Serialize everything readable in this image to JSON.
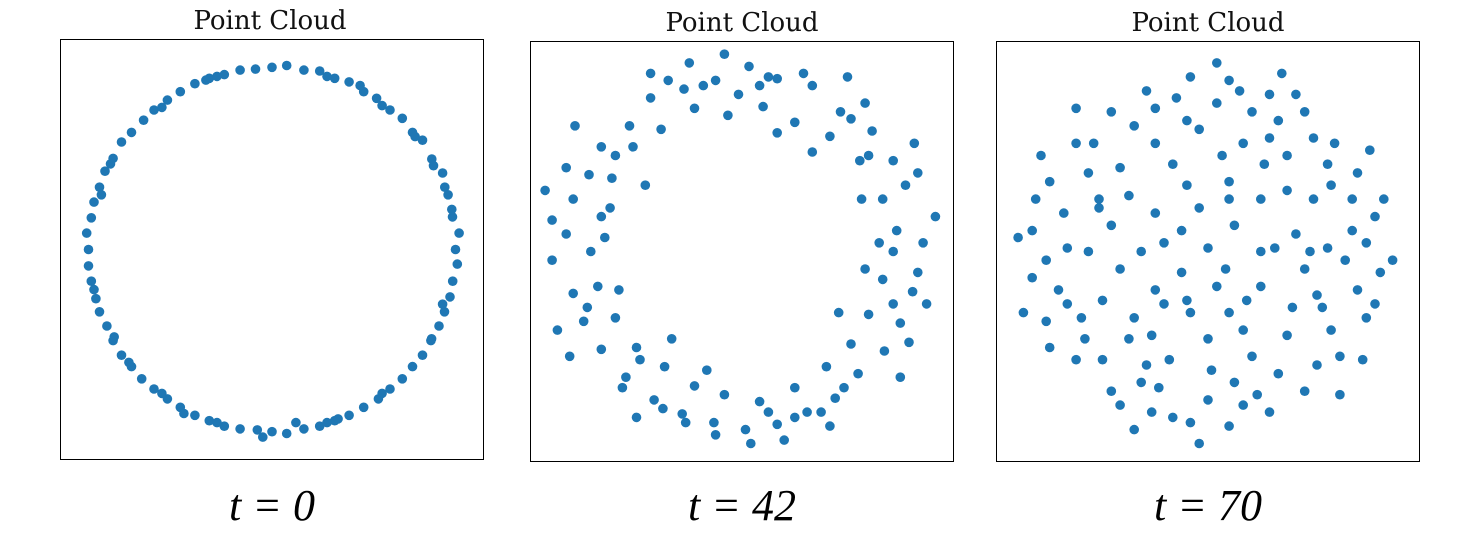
{
  "colors": {
    "point": "#1f77b4",
    "frame": "#000000"
  },
  "chart_data": [
    {
      "type": "scatter",
      "title": "Point Cloud",
      "caption": "t = 0",
      "grid": false,
      "xlim": [
        -1.15,
        1.15
      ],
      "ylim": [
        -1.15,
        1.15
      ],
      "points": [
        [
          1.0,
          0.0
        ],
        [
          0.984,
          0.179
        ],
        [
          0.942,
          0.342
        ],
        [
          0.871,
          0.497
        ],
        [
          0.766,
          0.643
        ],
        [
          0.643,
          0.766
        ],
        [
          0.5,
          0.866
        ],
        [
          0.342,
          0.94
        ],
        [
          0.174,
          0.985
        ],
        [
          0.0,
          1.0
        ],
        [
          -0.174,
          0.985
        ],
        [
          -0.342,
          0.94
        ],
        [
          -0.5,
          0.866
        ],
        [
          -0.643,
          0.766
        ],
        [
          -0.766,
          0.643
        ],
        [
          -0.866,
          0.5
        ],
        [
          -0.94,
          0.342
        ],
        [
          -0.985,
          0.174
        ],
        [
          -1.0,
          0.0
        ],
        [
          -0.985,
          -0.174
        ],
        [
          -0.94,
          -0.342
        ],
        [
          -0.866,
          -0.5
        ],
        [
          -0.766,
          -0.643
        ],
        [
          -0.643,
          -0.766
        ],
        [
          -0.5,
          -0.866
        ],
        [
          -0.342,
          -0.94
        ],
        [
          -0.174,
          -0.985
        ],
        [
          0.0,
          -1.0
        ],
        [
          0.174,
          -0.985
        ],
        [
          0.342,
          -0.94
        ],
        [
          0.5,
          -0.866
        ],
        [
          0.643,
          -0.766
        ],
        [
          0.766,
          -0.643
        ],
        [
          0.866,
          -0.5
        ],
        [
          0.94,
          -0.342
        ],
        [
          0.985,
          -0.174
        ],
        [
          1.02,
          0.09
        ],
        [
          0.93,
          0.42
        ],
        [
          0.82,
          0.6
        ],
        [
          0.71,
          0.72
        ],
        [
          0.57,
          0.83
        ],
        [
          0.42,
          0.92
        ],
        [
          0.26,
          0.98
        ],
        [
          0.08,
          1.01
        ],
        [
          -0.09,
          0.99
        ],
        [
          -0.26,
          0.96
        ],
        [
          -0.42,
          0.91
        ],
        [
          -0.57,
          0.82
        ],
        [
          -0.7,
          0.71
        ],
        [
          -0.82,
          0.59
        ],
        [
          -0.91,
          0.43
        ],
        [
          -0.97,
          0.26
        ],
        [
          -1.01,
          0.09
        ],
        [
          -1.0,
          -0.09
        ],
        [
          -0.96,
          -0.27
        ],
        [
          -0.9,
          -0.42
        ],
        [
          -0.82,
          -0.58
        ],
        [
          -0.71,
          -0.71
        ],
        [
          -0.57,
          -0.82
        ],
        [
          -0.42,
          -0.91
        ],
        [
          -0.26,
          -0.97
        ],
        [
          -0.08,
          -0.99
        ],
        [
          0.08,
          -1.01
        ],
        [
          0.26,
          -0.97
        ],
        [
          0.42,
          -0.91
        ],
        [
          0.58,
          -0.82
        ],
        [
          0.71,
          -0.71
        ],
        [
          0.82,
          -0.58
        ],
        [
          0.91,
          -0.42
        ],
        [
          0.97,
          -0.26
        ],
        [
          1.01,
          -0.08
        ],
        [
          0.96,
          0.3
        ],
        [
          0.88,
          0.46
        ],
        [
          0.6,
          0.79
        ],
        [
          0.3,
          0.95
        ],
        [
          -0.3,
          0.95
        ],
        [
          -0.6,
          0.78
        ],
        [
          -0.88,
          0.47
        ],
        [
          -0.97,
          -0.22
        ],
        [
          -0.86,
          -0.48
        ],
        [
          -0.6,
          -0.79
        ],
        [
          -0.3,
          -0.95
        ],
        [
          0.3,
          -0.95
        ],
        [
          0.6,
          -0.79
        ],
        [
          0.87,
          -0.49
        ],
        [
          0.98,
          0.22
        ],
        [
          -0.05,
          -1.03
        ],
        [
          0.13,
          -0.95
        ],
        [
          -0.93,
          0.3
        ],
        [
          0.93,
          -0.3
        ],
        [
          0.48,
          0.9
        ],
        [
          -0.48,
          -0.9
        ],
        [
          0.78,
          0.62
        ],
        [
          -0.78,
          -0.62
        ],
        [
          0.36,
          -0.93
        ],
        [
          -0.36,
          0.93
        ]
      ]
    },
    {
      "type": "scatter",
      "title": "Point Cloud",
      "caption": "t = 42",
      "grid": false,
      "xlim": [
        -1.2,
        1.2
      ],
      "ylim": [
        -1.2,
        1.2
      ],
      "points": [
        [
          1.03,
          0.05
        ],
        [
          0.93,
          0.38
        ],
        [
          0.86,
          0.52
        ],
        [
          0.74,
          0.69
        ],
        [
          0.56,
          0.8
        ],
        [
          0.4,
          0.95
        ],
        [
          0.2,
          0.99
        ],
        [
          0.04,
          1.06
        ],
        [
          -0.15,
          0.98
        ],
        [
          -0.33,
          0.93
        ],
        [
          -0.52,
          0.88
        ],
        [
          -0.64,
          0.72
        ],
        [
          -0.8,
          0.6
        ],
        [
          -0.87,
          0.44
        ],
        [
          -0.96,
          0.3
        ],
        [
          -1.0,
          0.1
        ],
        [
          -1.08,
          -0.05
        ],
        [
          -0.96,
          -0.24
        ],
        [
          -0.9,
          -0.4
        ],
        [
          -0.8,
          -0.56
        ],
        [
          -0.66,
          -0.72
        ],
        [
          -0.5,
          -0.85
        ],
        [
          -0.34,
          -0.93
        ],
        [
          -0.16,
          -0.98
        ],
        [
          0.02,
          -1.02
        ],
        [
          0.2,
          -0.99
        ],
        [
          0.37,
          -0.92
        ],
        [
          0.53,
          -0.84
        ],
        [
          0.66,
          -0.7
        ],
        [
          0.81,
          -0.57
        ],
        [
          0.9,
          -0.41
        ],
        [
          0.97,
          -0.23
        ],
        [
          0.88,
          0.12
        ],
        [
          0.8,
          0.3
        ],
        [
          0.67,
          0.52
        ],
        [
          0.5,
          0.66
        ],
        [
          0.3,
          0.74
        ],
        [
          0.12,
          0.83
        ],
        [
          -0.08,
          0.78
        ],
        [
          -0.27,
          0.82
        ],
        [
          -0.46,
          0.7
        ],
        [
          -0.62,
          0.6
        ],
        [
          -0.74,
          0.42
        ],
        [
          -0.8,
          0.2
        ],
        [
          -0.86,
          0.0
        ],
        [
          -0.82,
          -0.2
        ],
        [
          -0.72,
          -0.38
        ],
        [
          -0.6,
          -0.55
        ],
        [
          -0.44,
          -0.66
        ],
        [
          -0.27,
          -0.77
        ],
        [
          -0.1,
          -0.82
        ],
        [
          0.1,
          -0.86
        ],
        [
          0.3,
          -0.78
        ],
        [
          0.48,
          -0.66
        ],
        [
          0.62,
          -0.53
        ],
        [
          0.72,
          -0.36
        ],
        [
          0.8,
          -0.16
        ],
        [
          0.86,
          0.0
        ],
        [
          1.1,
          0.2
        ],
        [
          1.0,
          -0.12
        ],
        [
          -1.12,
          0.35
        ],
        [
          -1.05,
          -0.45
        ],
        [
          0.98,
          0.62
        ],
        [
          -0.6,
          -0.95
        ],
        [
          0.24,
          -1.08
        ],
        [
          -0.3,
          1.08
        ],
        [
          0.6,
          1.0
        ],
        [
          -0.95,
          0.72
        ],
        [
          0.9,
          -0.72
        ],
        [
          -0.1,
          1.13
        ],
        [
          0.15,
          -0.92
        ],
        [
          -0.45,
          -0.9
        ],
        [
          0.45,
          -0.92
        ],
        [
          0.7,
          0.85
        ],
        [
          -0.75,
          0.25
        ],
        [
          0.68,
          0.3
        ],
        [
          0.7,
          -0.1
        ],
        [
          -0.7,
          -0.22
        ],
        [
          0.55,
          -0.35
        ],
        [
          -0.55,
          0.38
        ],
        [
          0.4,
          0.57
        ],
        [
          -0.4,
          -0.5
        ],
        [
          0.2,
          0.68
        ],
        [
          -0.2,
          -0.68
        ],
        [
          1.0,
          0.45
        ],
        [
          -1.0,
          0.48
        ],
        [
          0.95,
          -0.52
        ],
        [
          -0.98,
          -0.6
        ],
        [
          0.35,
          1.02
        ],
        [
          -0.52,
          1.02
        ],
        [
          0.05,
          -1.1
        ],
        [
          -0.15,
          -1.05
        ],
        [
          0.78,
          0.05
        ],
        [
          -0.78,
          0.08
        ],
        [
          0.62,
          0.76
        ],
        [
          -0.68,
          -0.78
        ],
        [
          0.5,
          -1.0
        ],
        [
          -0.42,
          0.98
        ],
        [
          1.05,
          -0.3
        ],
        [
          -1.08,
          0.18
        ],
        [
          0.15,
          1.0
        ],
        [
          -0.02,
          0.9
        ],
        [
          0.86,
          -0.3
        ],
        [
          -0.88,
          -0.32
        ],
        [
          0.3,
          -0.95
        ],
        [
          -0.32,
          -0.98
        ],
        [
          0.72,
          0.55
        ],
        [
          -0.72,
          0.55
        ],
        [
          0.58,
          -0.78
        ],
        [
          -0.58,
          -0.62
        ],
        [
          0.1,
          0.95
        ],
        [
          -0.22,
          0.95
        ]
      ]
    },
    {
      "type": "scatter",
      "title": "Point Cloud",
      "caption": "t = 70",
      "grid": false,
      "xlim": [
        -1.2,
        1.2
      ],
      "ylim": [
        -1.2,
        1.2
      ],
      "points": [
        [
          0.95,
          0.2
        ],
        [
          0.85,
          0.45
        ],
        [
          0.72,
          0.62
        ],
        [
          0.55,
          0.8
        ],
        [
          0.35,
          0.9
        ],
        [
          0.12,
          0.98
        ],
        [
          -0.1,
          1.0
        ],
        [
          -0.35,
          0.92
        ],
        [
          -0.55,
          0.8
        ],
        [
          -0.75,
          0.62
        ],
        [
          -0.9,
          0.4
        ],
        [
          -1.0,
          0.12
        ],
        [
          -1.0,
          -0.15
        ],
        [
          -0.92,
          -0.4
        ],
        [
          -0.75,
          -0.62
        ],
        [
          -0.55,
          -0.8
        ],
        [
          -0.32,
          -0.92
        ],
        [
          -0.1,
          -0.98
        ],
        [
          0.12,
          -1.0
        ],
        [
          0.35,
          -0.92
        ],
        [
          0.55,
          -0.8
        ],
        [
          0.75,
          -0.6
        ],
        [
          0.9,
          -0.38
        ],
        [
          0.98,
          -0.12
        ],
        [
          0.6,
          0.3
        ],
        [
          0.45,
          0.55
        ],
        [
          0.2,
          0.62
        ],
        [
          -0.05,
          0.7
        ],
        [
          -0.3,
          0.62
        ],
        [
          -0.5,
          0.48
        ],
        [
          -0.62,
          0.25
        ],
        [
          -0.68,
          0.0
        ],
        [
          -0.6,
          -0.28
        ],
        [
          -0.45,
          -0.5
        ],
        [
          -0.22,
          -0.62
        ],
        [
          0.02,
          -0.68
        ],
        [
          0.25,
          -0.6
        ],
        [
          0.45,
          -0.48
        ],
        [
          0.62,
          -0.25
        ],
        [
          0.68,
          0.02
        ],
        [
          0.3,
          0.3
        ],
        [
          0.12,
          0.4
        ],
        [
          -0.12,
          0.38
        ],
        [
          -0.3,
          0.22
        ],
        [
          -0.38,
          0.0
        ],
        [
          -0.3,
          -0.22
        ],
        [
          -0.1,
          -0.35
        ],
        [
          0.12,
          -0.35
        ],
        [
          0.3,
          -0.2
        ],
        [
          0.38,
          0.02
        ],
        [
          0.15,
          0.15
        ],
        [
          -0.15,
          0.12
        ],
        [
          -0.15,
          -0.12
        ],
        [
          0.1,
          -0.1
        ],
        [
          0.0,
          0.02
        ],
        [
          0.78,
          -0.05
        ],
        [
          -0.8,
          0.02
        ],
        [
          0.05,
          0.85
        ],
        [
          0.0,
          -0.85
        ],
        [
          0.5,
          0.1
        ],
        [
          -0.5,
          -0.1
        ],
        [
          0.2,
          -0.45
        ],
        [
          -0.2,
          0.5
        ],
        [
          0.82,
          0.12
        ],
        [
          -0.85,
          -0.22
        ],
        [
          0.6,
          0.65
        ],
        [
          -0.6,
          -0.62
        ],
        [
          0.62,
          -0.65
        ],
        [
          -0.65,
          0.62
        ],
        [
          0.25,
          0.8
        ],
        [
          -0.28,
          -0.78
        ],
        [
          0.92,
          0.58
        ],
        [
          -0.95,
          0.55
        ],
        [
          0.88,
          -0.62
        ],
        [
          -0.9,
          -0.55
        ],
        [
          0.42,
          1.02
        ],
        [
          -0.42,
          -1.02
        ],
        [
          1.05,
          -0.05
        ],
        [
          -1.08,
          0.08
        ],
        [
          0.2,
          -0.88
        ],
        [
          -0.18,
          0.88
        ],
        [
          0.7,
          0.38
        ],
        [
          -0.72,
          -0.38
        ],
        [
          0.4,
          -0.7
        ],
        [
          -0.42,
          0.72
        ],
        [
          0.08,
          0.55
        ],
        [
          0.0,
          -0.5
        ],
        [
          0.55,
          -0.1
        ],
        [
          -0.55,
          0.15
        ],
        [
          0.35,
          0.65
        ],
        [
          -0.35,
          -0.65
        ],
        [
          0.82,
          0.3
        ],
        [
          -0.8,
          -0.3
        ],
        [
          0.15,
          -0.75
        ],
        [
          -0.12,
          0.75
        ],
        [
          1.0,
          0.3
        ],
        [
          -1.05,
          -0.35
        ],
        [
          0.05,
          1.08
        ],
        [
          -0.05,
          -1.1
        ],
        [
          0.75,
          -0.82
        ],
        [
          -0.75,
          0.82
        ],
        [
          0.5,
          0.9
        ],
        [
          -0.5,
          -0.88
        ],
        [
          0.9,
          0.05
        ],
        [
          -0.92,
          -0.05
        ],
        [
          0.3,
          0.0
        ],
        [
          -0.05,
          0.25
        ],
        [
          0.22,
          -0.28
        ],
        [
          -0.25,
          -0.3
        ],
        [
          0.45,
          0.35
        ],
        [
          -0.45,
          0.32
        ],
        [
          0.48,
          -0.32
        ],
        [
          -0.42,
          -0.38
        ],
        [
          0.68,
          0.5
        ],
        [
          -0.68,
          0.45
        ],
        [
          0.7,
          -0.45
        ],
        [
          -0.7,
          -0.5
        ],
        [
          0.18,
          0.92
        ],
        [
          -0.2,
          -0.95
        ],
        [
          0.95,
          -0.3
        ],
        [
          -0.98,
          0.3
        ],
        [
          0.58,
          0.0
        ],
        [
          -0.25,
          0.05
        ],
        [
          0.05,
          -0.2
        ],
        [
          0.32,
          0.5
        ],
        [
          -0.32,
          -0.48
        ],
        [
          0.85,
          -0.22
        ],
        [
          -0.82,
          0.22
        ],
        [
          0.12,
          0.3
        ],
        [
          -0.12,
          -0.28
        ],
        [
          0.65,
          -0.32
        ],
        [
          -0.62,
          0.3
        ],
        [
          0.4,
          0.75
        ],
        [
          -0.38,
          -0.75
        ],
        [
          0.28,
          -0.82
        ],
        [
          -0.3,
          0.82
        ]
      ]
    }
  ]
}
